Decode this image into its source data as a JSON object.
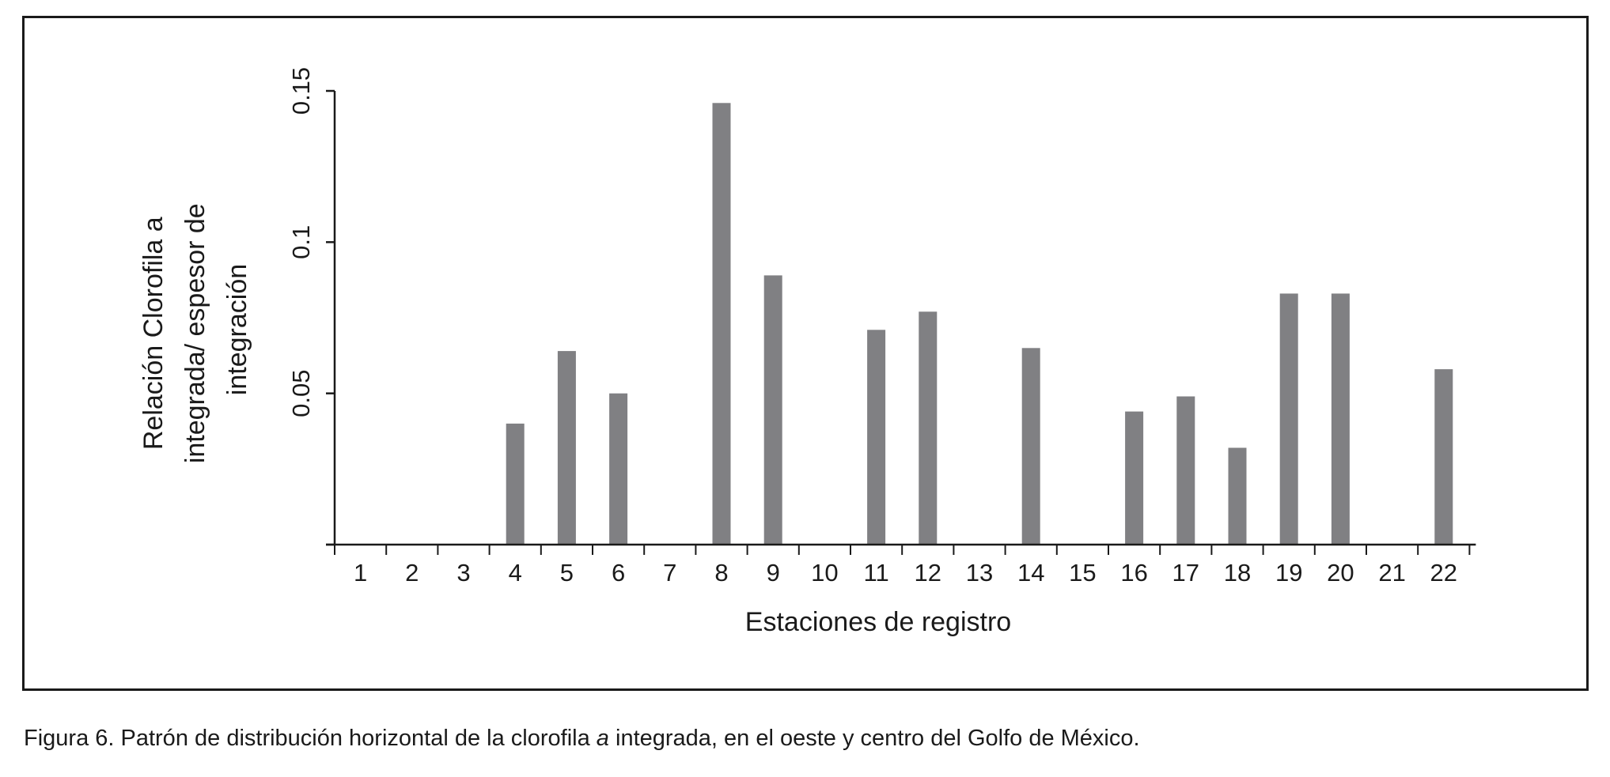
{
  "chart_data": {
    "type": "bar",
    "categories": [
      "1",
      "2",
      "3",
      "4",
      "5",
      "6",
      "7",
      "8",
      "9",
      "10",
      "11",
      "12",
      "13",
      "14",
      "15",
      "16",
      "17",
      "18",
      "19",
      "20",
      "21",
      "22"
    ],
    "values": [
      0,
      0,
      0,
      0.04,
      0.064,
      0.05,
      0,
      0.146,
      0.089,
      0,
      0.071,
      0.077,
      0,
      0.065,
      0,
      0.044,
      0.049,
      0.032,
      0.083,
      0.083,
      0,
      0.058
    ],
    "xlabel": "Estaciones de registro",
    "ylabel_lines": [
      "Relación Clorofila a",
      "integrada/ espesor de",
      "integración"
    ],
    "yticks": [
      "0.05",
      "0.1",
      "0.15"
    ],
    "ylim": [
      0,
      0.15
    ],
    "grid": false,
    "bar_color": "#808083",
    "axis_color": "#1a1a1a"
  },
  "caption": {
    "prefix": "Figura 6. Patrón de distribución horizontal de la clorofila ",
    "italic": "a",
    "suffix": " integrada, en el oeste y centro del Golfo de México."
  }
}
